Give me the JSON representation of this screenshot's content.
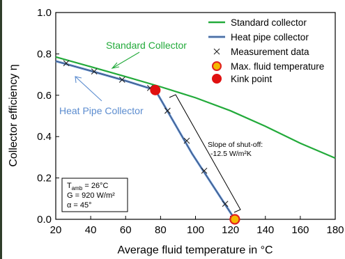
{
  "chart_data": {
    "type": "line",
    "xlabel": "Average fluid temperature in °C",
    "ylabel": "Collector efficiency η",
    "xlim": [
      20,
      180
    ],
    "ylim": [
      0.0,
      1.0
    ],
    "x_ticks": [
      "20",
      "40",
      "60",
      "80",
      "100",
      "120",
      "140",
      "160",
      "180"
    ],
    "y_ticks": [
      "0.0",
      "0.2",
      "0.4",
      "0.6",
      "0.8",
      "1.0"
    ],
    "grid": false,
    "legend_position": "top-right",
    "colors": {
      "standard": "#22aa3a",
      "heat_pipe": "#5b8ccf",
      "max_fluid_fill": "#f5b800",
      "max_fluid_edge": "#e02020",
      "kink": "#e01010"
    },
    "series": [
      {
        "name": "Standard collector",
        "kind": "line",
        "x": [
          20,
          40,
          60,
          80,
          100,
          120,
          140,
          160,
          180
        ],
        "y": [
          0.785,
          0.738,
          0.69,
          0.641,
          0.588,
          0.525,
          0.45,
          0.368,
          0.296
        ]
      },
      {
        "name": "Heat pipe collector",
        "kind": "line",
        "x": [
          20,
          40,
          60,
          77,
          98,
          122.5
        ],
        "y": [
          0.765,
          0.718,
          0.67,
          0.625,
          0.318,
          0.0
        ]
      },
      {
        "name": "Measurement data",
        "kind": "marker-x",
        "x": [
          26,
          42,
          58,
          74,
          84,
          95,
          105,
          117
        ],
        "y": [
          0.755,
          0.715,
          0.675,
          0.635,
          0.525,
          0.38,
          0.235,
          0.075
        ]
      },
      {
        "name": "Max. fluid temperature",
        "kind": "marker-circle",
        "x": [
          122.5
        ],
        "y": [
          0.0
        ]
      },
      {
        "name": "Kink point",
        "kind": "marker-circle",
        "x": [
          77
        ],
        "y": [
          0.625
        ]
      }
    ],
    "annotations": {
      "standard_label": "Standard Collector",
      "heat_pipe_label": "Heat Pipe Collector",
      "slope_line1": "Slope of shut-off:",
      "slope_line2": "-12.5 W/m²K",
      "cond_t_main": "T",
      "cond_t_sub": "amb",
      "cond_t_rest": " = 26°C",
      "cond_g": "G = 920 W/m²",
      "cond_alpha": "α = 45°"
    }
  }
}
